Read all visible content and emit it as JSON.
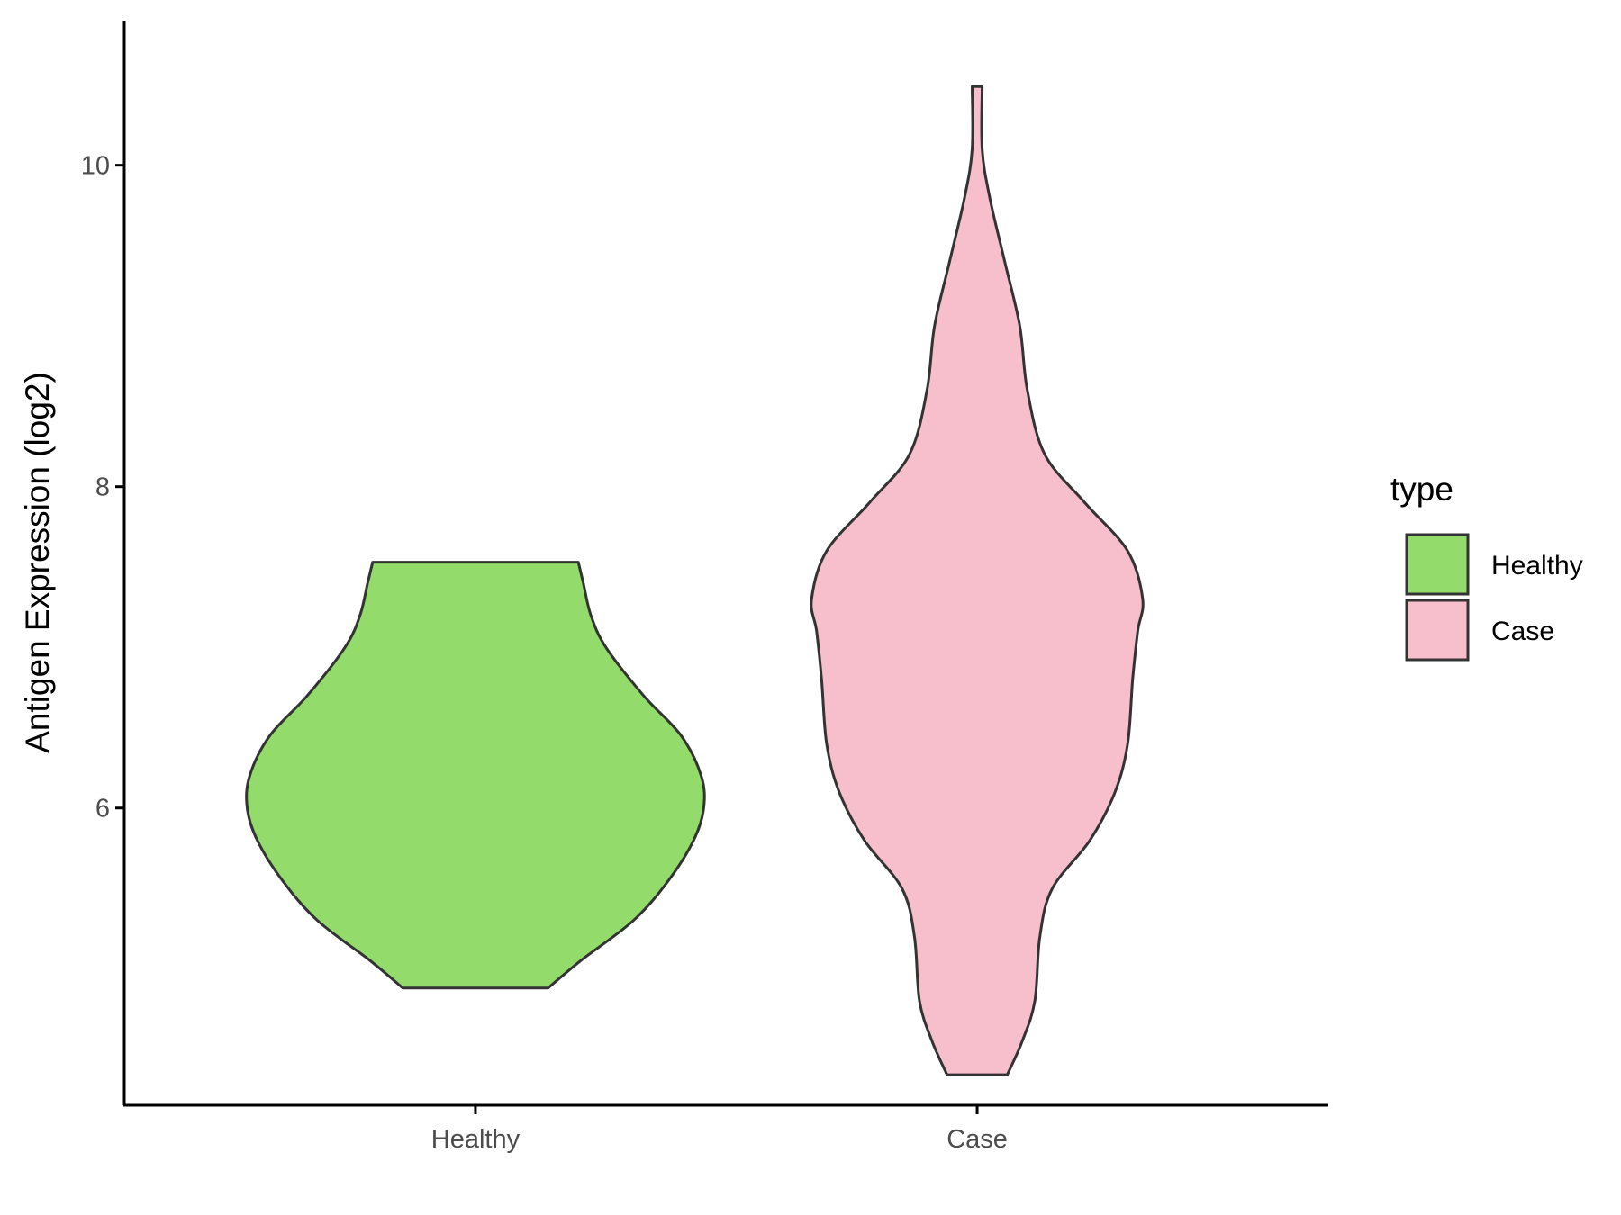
{
  "chart_data": {
    "type": "violin",
    "title": "",
    "xlabel": "",
    "ylabel": "Antigen Expression (log2)",
    "ylim": [
      4.15,
      10.9
    ],
    "yticks": [
      6,
      8,
      10
    ],
    "categories": [
      "Healthy",
      "Case"
    ],
    "grid": false,
    "legend": {
      "title": "type",
      "placement": "right",
      "entries": [
        {
          "label": "Healthy",
          "color": "#93DC6B"
        },
        {
          "label": "Case",
          "color": "#F7BFCB"
        }
      ]
    },
    "series": [
      {
        "name": "Healthy",
        "color": "#93DC6B",
        "min": 4.88,
        "max": 7.53,
        "density_profile": [
          [
            4.88,
            0.29
          ],
          [
            5.05,
            0.42
          ],
          [
            5.3,
            0.63
          ],
          [
            5.55,
            0.77
          ],
          [
            5.8,
            0.87
          ],
          [
            6.0,
            0.91
          ],
          [
            6.2,
            0.9
          ],
          [
            6.45,
            0.82
          ],
          [
            6.7,
            0.67
          ],
          [
            7.0,
            0.52
          ],
          [
            7.2,
            0.46
          ],
          [
            7.4,
            0.43
          ],
          [
            7.53,
            0.41
          ]
        ]
      },
      {
        "name": "Case",
        "color": "#F7BFCB",
        "min": 4.34,
        "max": 10.49,
        "density_profile": [
          [
            4.34,
            0.12
          ],
          [
            4.55,
            0.18
          ],
          [
            4.8,
            0.23
          ],
          [
            5.2,
            0.25
          ],
          [
            5.5,
            0.3
          ],
          [
            5.8,
            0.45
          ],
          [
            6.1,
            0.55
          ],
          [
            6.4,
            0.6
          ],
          [
            6.8,
            0.62
          ],
          [
            7.1,
            0.64
          ],
          [
            7.3,
            0.66
          ],
          [
            7.6,
            0.6
          ],
          [
            7.9,
            0.43
          ],
          [
            8.2,
            0.27
          ],
          [
            8.6,
            0.2
          ],
          [
            9.0,
            0.17
          ],
          [
            9.4,
            0.11
          ],
          [
            9.8,
            0.05
          ],
          [
            10.1,
            0.02
          ],
          [
            10.49,
            0.02
          ]
        ]
      }
    ]
  }
}
